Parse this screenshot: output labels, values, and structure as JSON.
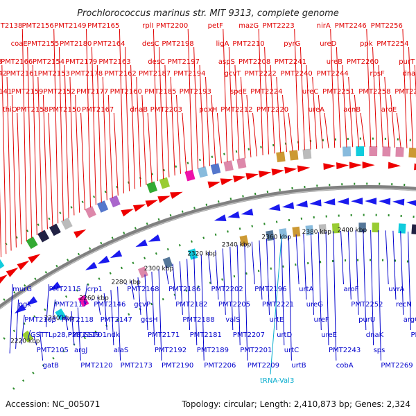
{
  "title": "Prochlorococcus marinus str. MIT 9313, complete genome",
  "accession": "Accession: NC_005071",
  "summary": "Topology: circular; Length: 2,410,873 bp; Genes: 2,324",
  "colors": {
    "forward_label": "#e00000",
    "reverse_label": "#0000cc",
    "rna_label": "#00aacc",
    "forward_arrow": "#ee0000",
    "reverse_arrow": "#1a1aee",
    "backbone": "#808080",
    "tick": "#2a8a2a"
  },
  "ticks": [
    "2220 kbp",
    "2240 kbp",
    "2260 kbp",
    "2280 kbp",
    "2300 kbp",
    "2320 kbp",
    "2340 kbp",
    "2360 kbp",
    "2380 kbp",
    "2400 kbp"
  ],
  "forward_labels": [
    "PMT2145",
    "PMT2144",
    "PMT2143",
    "PMT2142",
    "PMT2141",
    "thiO",
    "PMT2138",
    "coaE",
    "PMT2166",
    "PMT2161",
    "PMT2159",
    "PMT2158",
    "PMT2156",
    "PMT2155",
    "PMT2154",
    "PMT2153",
    "PMT2152",
    "PMT2150",
    "PMT2149",
    "PMT2180",
    "PMT2179",
    "PMT2178",
    "PMT2177",
    "PMT2167",
    "PMT2165",
    "PMT2164",
    "PMT2163",
    "PMT2162",
    "PMT2160",
    "dnaB",
    "rplI",
    "desC",
    "desC",
    "PMT2187",
    "PMT2185",
    "PMT2203",
    "PMT2200",
    "PMT2198",
    "PMT2197",
    "PMT2194",
    "PMT2193",
    "pdxH",
    "petF",
    "ligA",
    "aspS",
    "gcvT",
    "speE",
    "PMT2212",
    "mazG",
    "PMT2210",
    "PMT2208",
    "PMT2222",
    "PMT2224",
    "PMT2220",
    "PMT2223",
    "pyrG",
    "PMT2241",
    "PMT2240",
    "ureC",
    "ureA",
    "nirA",
    "ureD",
    "ureB",
    "PMT2244",
    "PMT2251",
    "acnB",
    "PMT2246",
    "ppk",
    "PMT2260",
    "rpsF",
    "PMT2258",
    "aroE",
    "PMT2256",
    "PMT2254",
    "purT",
    "dnaN",
    "PMT2272",
    "thrC"
  ],
  "reverse_labels": [
    "murG",
    "pgk",
    "PMT2103",
    "GSTTLp28,P28,GSTO1",
    "PMT2105",
    "gatB",
    "PMT2115",
    "PMT2117",
    "PMT2118",
    "PMT2119",
    "argJ",
    "PMT2120",
    "crp1",
    "PMT2146",
    "PMT2147",
    "ndk",
    "alaS",
    "PMT2173",
    "PMT2168",
    "gcvP",
    "gcsH",
    "PMT2171",
    "PMT2192",
    "PMT2190",
    "PMT2186",
    "PMT2182",
    "PMT2188",
    "PMT2181",
    "PMT2189",
    "PMT2206",
    "PMT2202",
    "PMT2205",
    "valS",
    "PMT2207",
    "PMT2201",
    "PMT2209",
    "PMT2196",
    "PMT2221",
    "urtE",
    "urtD",
    "urtC",
    "urtB",
    "urtA",
    "ureG",
    "ureF",
    "ureE",
    "PMT2243",
    "cobA",
    "aroF",
    "PMT2252",
    "purU",
    "dnaK",
    "sps",
    "PMT2269",
    "uvrA",
    "recN",
    "argG",
    "PMT2262"
  ],
  "rna_labels": [
    "tRNA-Val3"
  ]
}
